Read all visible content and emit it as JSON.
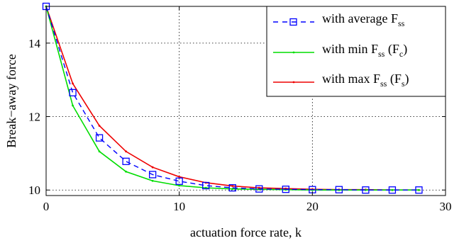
{
  "chart_data": {
    "type": "line",
    "xlabel": "actuation force rate, k",
    "ylabel": "Break−away force",
    "xlim": [
      0,
      30
    ],
    "ylim": [
      9.85,
      15
    ],
    "xticks": [
      0,
      10,
      20,
      30
    ],
    "yticks": [
      10,
      12,
      14
    ],
    "grid": true,
    "legend_position": "top-right",
    "series": [
      {
        "name": "with average F_ss",
        "legend": {
          "prefix": "with average F",
          "sub": "ss",
          "suffix": ""
        },
        "color": "#0000ff",
        "style": "dashed-square",
        "x": [
          0,
          2,
          4,
          6,
          8,
          10,
          12,
          14,
          16,
          18,
          20,
          22,
          24,
          26,
          28
        ],
        "y": [
          15.0,
          12.65,
          11.42,
          10.78,
          10.42,
          10.24,
          10.12,
          10.06,
          10.03,
          10.02,
          10.01,
          10.01,
          10.0,
          10.0,
          10.0
        ]
      },
      {
        "name": "with min F_ss (F_c)",
        "legend": {
          "prefix": "with min F",
          "sub": "ss",
          "mid": " (F",
          "sub2": "c",
          "suffix": ")"
        },
        "color": "#00dd00",
        "style": "solid-dot",
        "x": [
          0,
          2,
          4,
          6,
          8,
          10,
          12,
          14,
          16,
          18,
          20,
          22,
          24,
          26,
          28
        ],
        "y": [
          15.0,
          12.3,
          11.05,
          10.5,
          10.25,
          10.12,
          10.06,
          10.03,
          10.02,
          10.01,
          10.0,
          10.0,
          10.0,
          10.0,
          10.0
        ]
      },
      {
        "name": "with max F_ss (F_s)",
        "legend": {
          "prefix": "with max F",
          "sub": "ss",
          "mid": " (F",
          "sub2": "s",
          "suffix": ")"
        },
        "color": "#ee0000",
        "style": "solid-dot",
        "x": [
          0,
          2,
          4,
          6,
          8,
          10,
          12,
          14,
          16,
          18,
          20,
          22,
          24,
          26,
          28
        ],
        "y": [
          15.0,
          12.9,
          11.75,
          11.05,
          10.62,
          10.36,
          10.2,
          10.11,
          10.06,
          10.04,
          10.02,
          10.01,
          10.01,
          10.0,
          10.0
        ]
      }
    ]
  }
}
